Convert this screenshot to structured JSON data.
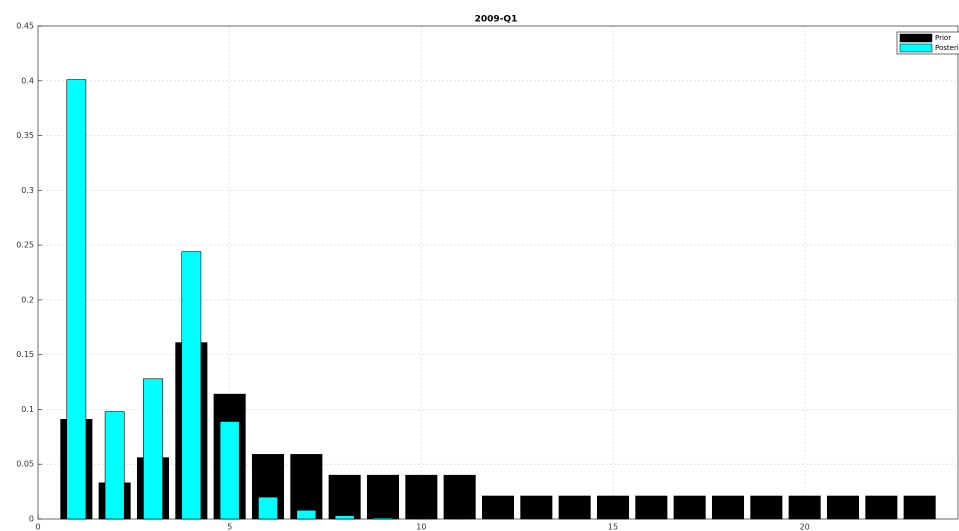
{
  "chart_data": {
    "type": "bar",
    "title": "2009-Q1",
    "x": [
      1,
      2,
      3,
      4,
      5,
      6,
      7,
      8,
      9,
      10,
      11,
      12,
      13,
      14,
      15,
      16,
      17,
      18,
      19,
      20,
      21,
      22,
      23
    ],
    "series": [
      {
        "name": "Prior",
        "color": "#000000",
        "values": [
          0.091,
          0.033,
          0.056,
          0.161,
          0.114,
          0.059,
          0.059,
          0.04,
          0.04,
          0.04,
          0.04,
          0.021,
          0.021,
          0.021,
          0.021,
          0.021,
          0.021,
          0.021,
          0.021,
          0.021,
          0.021,
          0.021,
          0.021
        ]
      },
      {
        "name": "Posterior",
        "color": "#00ffff",
        "values": [
          0.401,
          0.098,
          0.128,
          0.244,
          0.089,
          0.02,
          0.008,
          0.003,
          0.001,
          0.0005,
          0.0005,
          0,
          0,
          0,
          0,
          0,
          0,
          0,
          0,
          0,
          0,
          0,
          0
        ]
      }
    ],
    "xlim": [
      0,
      24
    ],
    "xticks": [
      0,
      5,
      10,
      15,
      20
    ],
    "ylim": [
      0,
      0.45
    ],
    "yticks": [
      0,
      0.05,
      0.1,
      0.15,
      0.2,
      0.25,
      0.3,
      0.35,
      0.4,
      0.45
    ],
    "grid": true,
    "legend": "upper-right"
  }
}
